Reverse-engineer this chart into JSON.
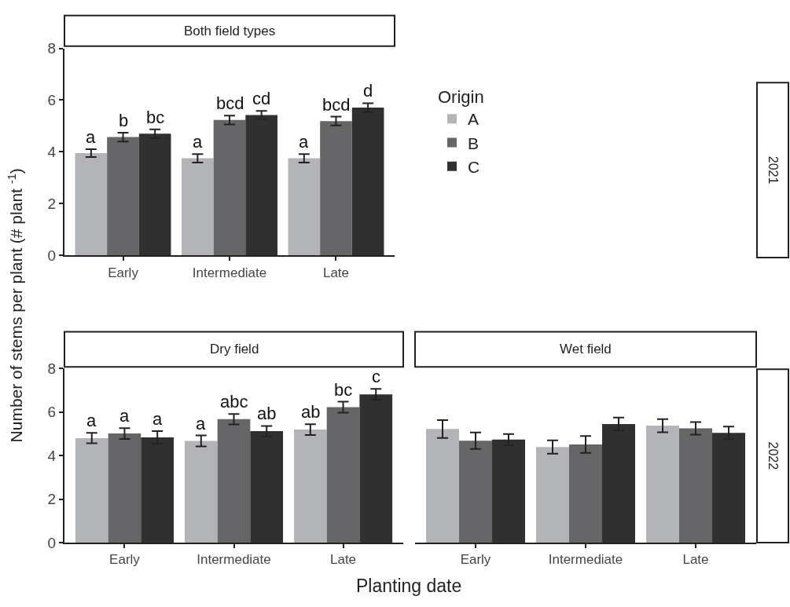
{
  "chart_data": [
    {
      "type": "bar",
      "title": "Both field types",
      "annotations": [
        "2021"
      ],
      "ylabel": "Number of stems per plant (# plant $^{-1}$)",
      "legend_title": "Origin",
      "legend": "right",
      "categories": [
        "Early",
        "Intermediate",
        "Late"
      ],
      "ylim": [
        0,
        8
      ],
      "yticks": [
        0,
        2,
        4,
        6,
        8
      ],
      "series": [
        {
          "name": "A",
          "color": "#b3b4b8",
          "values": [
            3.95,
            3.75,
            3.75
          ],
          "errors": [
            0.15,
            0.16,
            0.16
          ],
          "value_labels": [
            "a",
            "a",
            "a"
          ]
        },
        {
          "name": "B",
          "color": "#666668",
          "values": [
            4.57,
            5.23,
            5.19
          ],
          "errors": [
            0.17,
            0.17,
            0.17
          ],
          "value_labels": [
            "b",
            "bcd",
            "bcd"
          ]
        },
        {
          "name": "C",
          "color": "#303030",
          "values": [
            4.7,
            5.42,
            5.71
          ],
          "errors": [
            0.17,
            0.16,
            0.17
          ],
          "value_labels": [
            "bc",
            "cd",
            "d"
          ]
        }
      ]
    },
    {
      "type": "bar",
      "title": "Dry field",
      "xlabel": "Planting date",
      "categories": [
        "Early",
        "Intermediate",
        "Late"
      ],
      "ylim": [
        0,
        8
      ],
      "yticks": [
        0,
        2,
        4,
        6,
        8
      ],
      "series": [
        {
          "color": "#b3b4b8",
          "values": [
            4.8,
            4.67,
            5.19
          ],
          "errors": [
            0.24,
            0.25,
            0.25
          ],
          "value_labels": [
            "a",
            "a",
            "ab"
          ]
        },
        {
          "color": "#666668",
          "values": [
            5.01,
            5.67,
            6.22
          ],
          "errors": [
            0.25,
            0.24,
            0.25
          ],
          "value_labels": [
            "a",
            "abc",
            "bc"
          ]
        },
        {
          "color": "#303030",
          "values": [
            4.83,
            5.12,
            6.81
          ],
          "errors": [
            0.29,
            0.24,
            0.25
          ],
          "value_labels": [
            "a",
            "ab",
            "c"
          ]
        }
      ]
    },
    {
      "type": "bar",
      "title": "Wet field",
      "annotations": [
        "2022"
      ],
      "tick_labels": "x",
      "categories": [
        "Early",
        "Intermediate",
        "Late"
      ],
      "ylim": [
        0,
        8
      ],
      "yticks": [
        0,
        2,
        4,
        6,
        8
      ],
      "series": [
        {
          "color": "#b3b4b8",
          "values": [
            5.22,
            4.39,
            5.37
          ],
          "errors": [
            0.41,
            0.31,
            0.3
          ]
        },
        {
          "color": "#666668",
          "values": [
            4.68,
            4.51,
            5.25
          ],
          "errors": [
            0.38,
            0.39,
            0.29
          ]
        },
        {
          "color": "#303030",
          "values": [
            4.73,
            5.45,
            5.04
          ],
          "errors": [
            0.26,
            0.29,
            0.29
          ]
        }
      ]
    }
  ]
}
